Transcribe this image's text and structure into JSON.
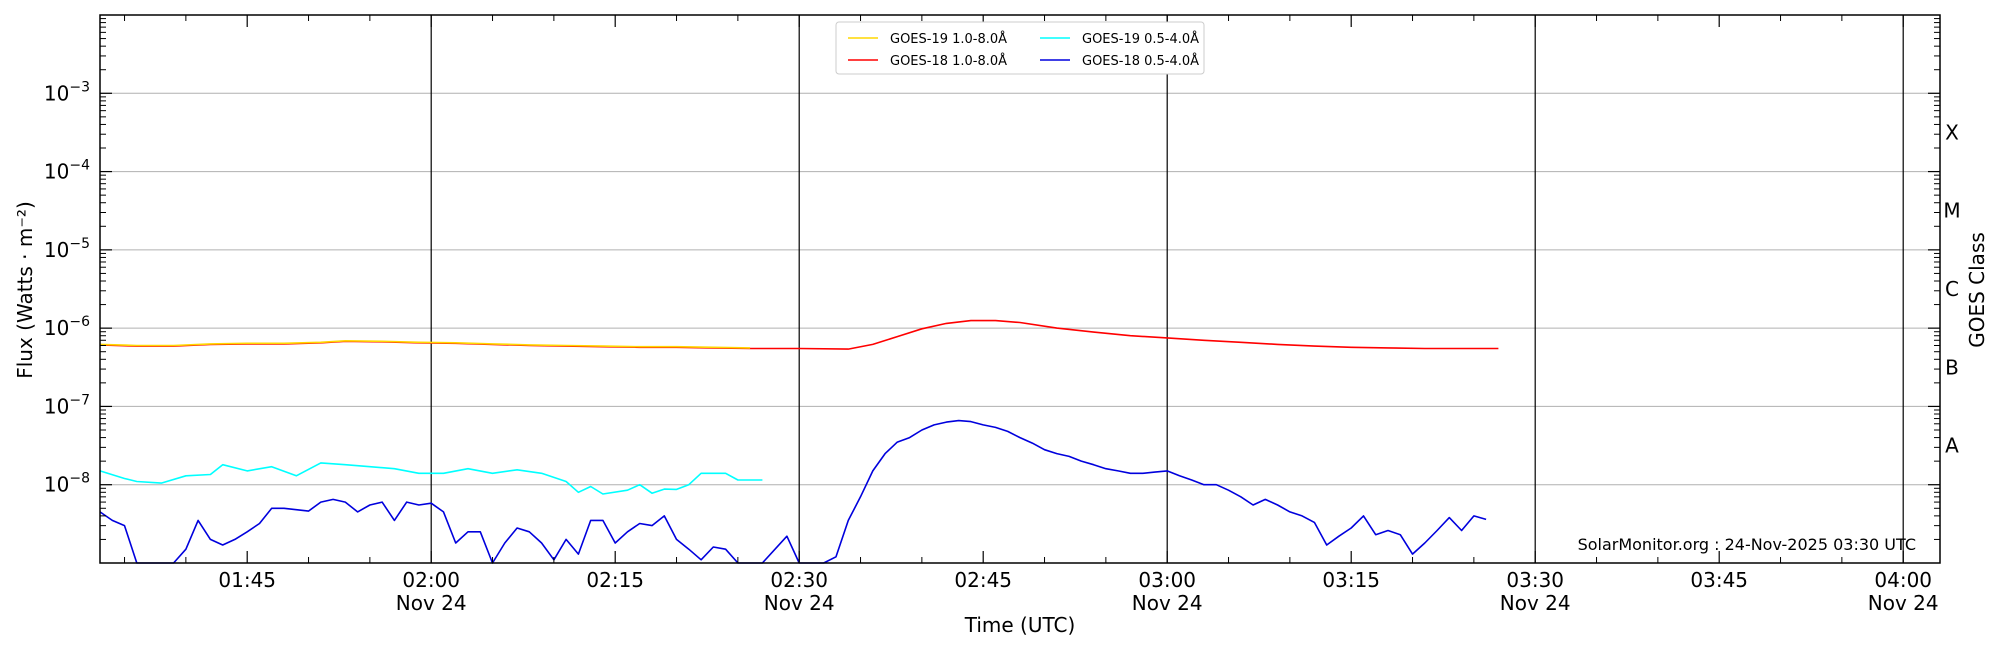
{
  "chart_data": {
    "type": "line",
    "xlabel": "Time (UTC)",
    "ylabel": "Flux (Watts · m⁻²)",
    "right_ylabel": "GOES Class",
    "y_scale": "log",
    "ylim": [
      1e-09,
      0.01
    ],
    "xlim": [
      "01:33",
      "04:03"
    ],
    "grid": "horizontal",
    "legend_position": "top-center",
    "credit": "SolarMonitor.org : 24-Nov-2025 03:30 UTC",
    "x_ticks": [
      {
        "time": "01:45",
        "label": "01:45",
        "sublabel": ""
      },
      {
        "time": "02:00",
        "label": "02:00",
        "sublabel": "Nov 24"
      },
      {
        "time": "02:15",
        "label": "02:15",
        "sublabel": ""
      },
      {
        "time": "02:30",
        "label": "02:30",
        "sublabel": "Nov 24"
      },
      {
        "time": "02:45",
        "label": "02:45",
        "sublabel": ""
      },
      {
        "time": "03:00",
        "label": "03:00",
        "sublabel": "Nov 24"
      },
      {
        "time": "03:15",
        "label": "03:15",
        "sublabel": ""
      },
      {
        "time": "03:30",
        "label": "03:30",
        "sublabel": "Nov 24"
      },
      {
        "time": "03:45",
        "label": "03:45",
        "sublabel": ""
      },
      {
        "time": "04:00",
        "label": "04:00",
        "sublabel": "Nov 24"
      }
    ],
    "vertical_lines": [
      "02:00",
      "02:30",
      "03:00",
      "03:30",
      "04:00"
    ],
    "y_ticks": [
      {
        "exp": -8,
        "label": "10",
        "power": "−8"
      },
      {
        "exp": -7,
        "label": "10",
        "power": "−7"
      },
      {
        "exp": -6,
        "label": "10",
        "power": "−6"
      },
      {
        "exp": -5,
        "label": "10",
        "power": "−5"
      },
      {
        "exp": -4,
        "label": "10",
        "power": "−4"
      },
      {
        "exp": -3,
        "label": "10",
        "power": "−3"
      }
    ],
    "goes_classes": [
      {
        "label": "A",
        "exp": -7.5
      },
      {
        "label": "B",
        "exp": -6.5
      },
      {
        "label": "C",
        "exp": -5.5
      },
      {
        "label": "M",
        "exp": -4.5
      },
      {
        "label": "X",
        "exp": -3.5
      }
    ],
    "series": [
      {
        "name": "GOES-19 1.0-8.0Å",
        "color": "#ffd700",
        "points": [
          [
            "01:33",
            6.2e-07
          ],
          [
            "01:36",
            6e-07
          ],
          [
            "01:39",
            6e-07
          ],
          [
            "01:42",
            6.3e-07
          ],
          [
            "01:45",
            6.4e-07
          ],
          [
            "01:48",
            6.4e-07
          ],
          [
            "01:51",
            6.6e-07
          ],
          [
            "01:53",
            6.9e-07
          ],
          [
            "01:56",
            6.8e-07
          ],
          [
            "01:59",
            6.6e-07
          ],
          [
            "02:02",
            6.5e-07
          ],
          [
            "02:05",
            6.3e-07
          ],
          [
            "02:08",
            6.1e-07
          ],
          [
            "02:11",
            6e-07
          ],
          [
            "02:14",
            5.9e-07
          ],
          [
            "02:17",
            5.8e-07
          ],
          [
            "02:20",
            5.8e-07
          ],
          [
            "02:23",
            5.7e-07
          ],
          [
            "02:26",
            5.6e-07
          ]
        ]
      },
      {
        "name": "GOES-19 0.5-4.0Å",
        "color": "#00ffff",
        "points": [
          [
            "01:33",
            1.5e-08
          ],
          [
            "01:35",
            1.2e-08
          ],
          [
            "01:36",
            1.1e-08
          ],
          [
            "01:38",
            1.05e-08
          ],
          [
            "01:40",
            1.3e-08
          ],
          [
            "01:42",
            1.35e-08
          ],
          [
            "01:43",
            1.8e-08
          ],
          [
            "01:45",
            1.5e-08
          ],
          [
            "01:47",
            1.7e-08
          ],
          [
            "01:49",
            1.3e-08
          ],
          [
            "01:51",
            1.9e-08
          ],
          [
            "01:53",
            1.8e-08
          ],
          [
            "01:55",
            1.7e-08
          ],
          [
            "01:57",
            1.6e-08
          ],
          [
            "01:59",
            1.4e-08
          ],
          [
            "02:01",
            1.4e-08
          ],
          [
            "02:03",
            1.6e-08
          ],
          [
            "02:05",
            1.4e-08
          ],
          [
            "02:07",
            1.55e-08
          ],
          [
            "02:09",
            1.4e-08
          ],
          [
            "02:11",
            1.1e-08
          ],
          [
            "02:12",
            8e-09
          ],
          [
            "02:13",
            9.5e-09
          ],
          [
            "02:14",
            7.6e-09
          ],
          [
            "02:16",
            8.5e-09
          ],
          [
            "02:17",
            1e-08
          ],
          [
            "02:18",
            7.8e-09
          ],
          [
            "02:19",
            8.8e-09
          ],
          [
            "02:20",
            8.7e-09
          ],
          [
            "02:21",
            1e-08
          ],
          [
            "02:22",
            1.4e-08
          ],
          [
            "02:24",
            1.4e-08
          ],
          [
            "02:25",
            1.15e-08
          ],
          [
            "02:26",
            1.15e-08
          ],
          [
            "02:27",
            1.15e-08
          ]
        ]
      },
      {
        "name": "GOES-18 1.0-8.0Å",
        "color": "#ff0000",
        "points": [
          [
            "01:33",
            6.1e-07
          ],
          [
            "01:36",
            5.9e-07
          ],
          [
            "01:39",
            5.9e-07
          ],
          [
            "01:42",
            6.2e-07
          ],
          [
            "01:45",
            6.3e-07
          ],
          [
            "01:48",
            6.3e-07
          ],
          [
            "01:51",
            6.5e-07
          ],
          [
            "01:53",
            6.8e-07
          ],
          [
            "01:56",
            6.7e-07
          ],
          [
            "01:59",
            6.5e-07
          ],
          [
            "02:02",
            6.4e-07
          ],
          [
            "02:05",
            6.2e-07
          ],
          [
            "02:08",
            6e-07
          ],
          [
            "02:11",
            5.9e-07
          ],
          [
            "02:14",
            5.8e-07
          ],
          [
            "02:17",
            5.7e-07
          ],
          [
            "02:20",
            5.7e-07
          ],
          [
            "02:23",
            5.6e-07
          ],
          [
            "02:26",
            5.5e-07
          ],
          [
            "02:30",
            5.5e-07
          ],
          [
            "02:34",
            5.4e-07
          ],
          [
            "02:36",
            6.2e-07
          ],
          [
            "02:38",
            7.8e-07
          ],
          [
            "02:40",
            9.8e-07
          ],
          [
            "02:42",
            1.15e-06
          ],
          [
            "02:44",
            1.25e-06
          ],
          [
            "02:46",
            1.25e-06
          ],
          [
            "02:48",
            1.18e-06
          ],
          [
            "02:51",
            1e-06
          ],
          [
            "02:54",
            8.9e-07
          ],
          [
            "02:57",
            8e-07
          ],
          [
            "03:00",
            7.5e-07
          ],
          [
            "03:03",
            7e-07
          ],
          [
            "03:06",
            6.6e-07
          ],
          [
            "03:09",
            6.2e-07
          ],
          [
            "03:12",
            5.9e-07
          ],
          [
            "03:15",
            5.7e-07
          ],
          [
            "03:18",
            5.6e-07
          ],
          [
            "03:21",
            5.5e-07
          ],
          [
            "03:24",
            5.5e-07
          ],
          [
            "03:27",
            5.5e-07
          ]
        ]
      },
      {
        "name": "GOES-18 0.5-4.0Å",
        "color": "#0000dd",
        "points": [
          [
            "01:33",
            4.5e-09
          ],
          [
            "01:34",
            3.5e-09
          ],
          [
            "01:35",
            3e-09
          ],
          [
            "01:36",
            1e-09
          ],
          [
            "01:37",
            1e-09
          ],
          [
            "01:38",
            1e-09
          ],
          [
            "01:39",
            1e-09
          ],
          [
            "01:40",
            1.5e-09
          ],
          [
            "01:41",
            3.5e-09
          ],
          [
            "01:42",
            2e-09
          ],
          [
            "01:43",
            1.7e-09
          ],
          [
            "01:44",
            2e-09
          ],
          [
            "01:45",
            2.5e-09
          ],
          [
            "01:46",
            3.2e-09
          ],
          [
            "01:47",
            5e-09
          ],
          [
            "01:48",
            5e-09
          ],
          [
            "01:49",
            4.8e-09
          ],
          [
            "01:50",
            4.6e-09
          ],
          [
            "01:51",
            6e-09
          ],
          [
            "01:52",
            6.5e-09
          ],
          [
            "01:53",
            6e-09
          ],
          [
            "01:54",
            4.5e-09
          ],
          [
            "01:55",
            5.5e-09
          ],
          [
            "01:56",
            6e-09
          ],
          [
            "01:57",
            3.5e-09
          ],
          [
            "01:58",
            6e-09
          ],
          [
            "01:59",
            5.5e-09
          ],
          [
            "02:00",
            5.8e-09
          ],
          [
            "02:01",
            4.5e-09
          ],
          [
            "02:02",
            1.8e-09
          ],
          [
            "02:03",
            2.5e-09
          ],
          [
            "02:04",
            2.5e-09
          ],
          [
            "02:05",
            1e-09
          ],
          [
            "02:06",
            1.8e-09
          ],
          [
            "02:07",
            2.8e-09
          ],
          [
            "02:08",
            2.5e-09
          ],
          [
            "02:09",
            1.8e-09
          ],
          [
            "02:10",
            1.1e-09
          ],
          [
            "02:11",
            2e-09
          ],
          [
            "02:12",
            1.3e-09
          ],
          [
            "02:13",
            3.5e-09
          ],
          [
            "02:14",
            3.5e-09
          ],
          [
            "02:15",
            1.8e-09
          ],
          [
            "02:16",
            2.5e-09
          ],
          [
            "02:17",
            3.2e-09
          ],
          [
            "02:18",
            3e-09
          ],
          [
            "02:19",
            4e-09
          ],
          [
            "02:20",
            2e-09
          ],
          [
            "02:21",
            1.5e-09
          ],
          [
            "02:22",
            1.1e-09
          ],
          [
            "02:23",
            1.6e-09
          ],
          [
            "02:24",
            1.5e-09
          ],
          [
            "02:25",
            1e-09
          ],
          [
            "02:26",
            1e-09
          ],
          [
            "02:27",
            1e-09
          ],
          [
            "02:29",
            2.2e-09
          ],
          [
            "02:30",
            1e-09
          ],
          [
            "02:31",
            1e-09
          ],
          [
            "02:32",
            1e-09
          ],
          [
            "02:33",
            1.2e-09
          ],
          [
            "02:34",
            3.5e-09
          ],
          [
            "02:35",
            7e-09
          ],
          [
            "02:36",
            1.5e-08
          ],
          [
            "02:37",
            2.5e-08
          ],
          [
            "02:38",
            3.5e-08
          ],
          [
            "02:39",
            4e-08
          ],
          [
            "02:40",
            5e-08
          ],
          [
            "02:41",
            5.8e-08
          ],
          [
            "02:42",
            6.3e-08
          ],
          [
            "02:43",
            6.6e-08
          ],
          [
            "02:44",
            6.4e-08
          ],
          [
            "02:45",
            5.8e-08
          ],
          [
            "02:46",
            5.4e-08
          ],
          [
            "02:47",
            4.8e-08
          ],
          [
            "02:48",
            4e-08
          ],
          [
            "02:49",
            3.4e-08
          ],
          [
            "02:50",
            2.8e-08
          ],
          [
            "02:51",
            2.5e-08
          ],
          [
            "02:52",
            2.3e-08
          ],
          [
            "02:53",
            2e-08
          ],
          [
            "02:54",
            1.8e-08
          ],
          [
            "02:55",
            1.6e-08
          ],
          [
            "02:56",
            1.5e-08
          ],
          [
            "02:57",
            1.4e-08
          ],
          [
            "02:58",
            1.4e-08
          ],
          [
            "02:59",
            1.45e-08
          ],
          [
            "03:00",
            1.5e-08
          ],
          [
            "03:01",
            1.3e-08
          ],
          [
            "03:02",
            1.15e-08
          ],
          [
            "03:03",
            1e-08
          ],
          [
            "03:04",
            1e-08
          ],
          [
            "03:05",
            8.5e-09
          ],
          [
            "03:06",
            7e-09
          ],
          [
            "03:07",
            5.5e-09
          ],
          [
            "03:08",
            6.5e-09
          ],
          [
            "03:09",
            5.5e-09
          ],
          [
            "03:10",
            4.5e-09
          ],
          [
            "03:11",
            4e-09
          ],
          [
            "03:12",
            3.3e-09
          ],
          [
            "03:13",
            1.7e-09
          ],
          [
            "03:14",
            2.2e-09
          ],
          [
            "03:15",
            2.8e-09
          ],
          [
            "03:16",
            4e-09
          ],
          [
            "03:17",
            2.3e-09
          ],
          [
            "03:18",
            2.6e-09
          ],
          [
            "03:19",
            2.3e-09
          ],
          [
            "03:20",
            1.3e-09
          ],
          [
            "03:21",
            1.8e-09
          ],
          [
            "03:22",
            2.6e-09
          ],
          [
            "03:23",
            3.8e-09
          ],
          [
            "03:24",
            2.6e-09
          ],
          [
            "03:25",
            4e-09
          ],
          [
            "03:26",
            3.6e-09
          ]
        ]
      }
    ]
  }
}
